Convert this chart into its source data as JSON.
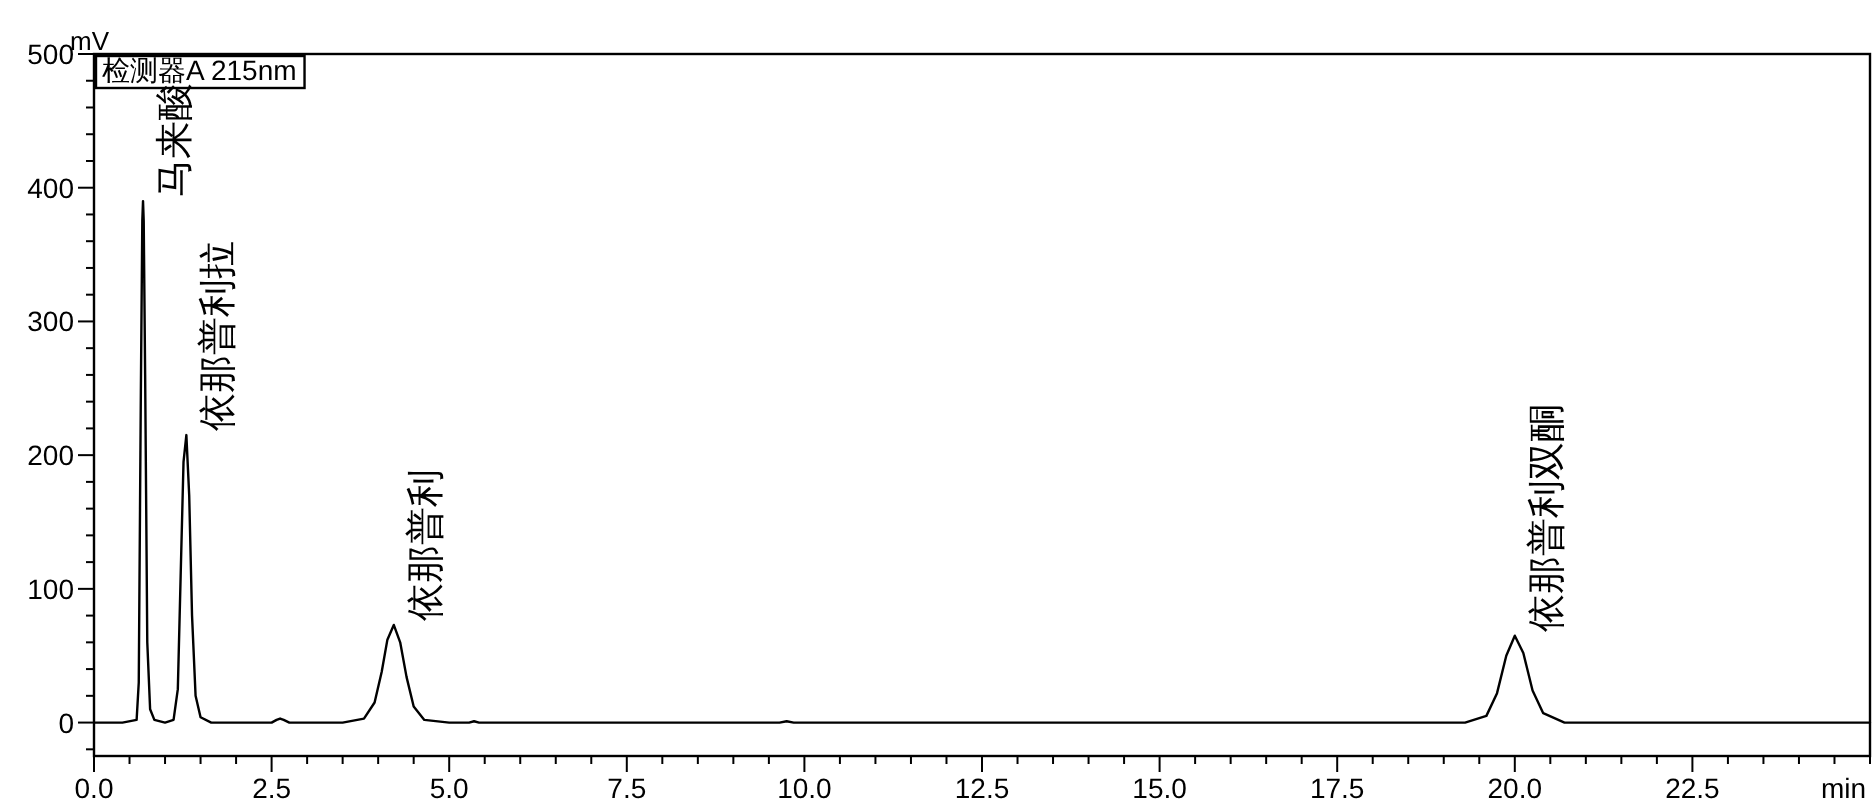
{
  "chart_data": {
    "type": "line",
    "xlabel": "min",
    "ylabel": "mV",
    "grid": false,
    "marker": "none",
    "line_style": "solid",
    "xlim": [
      0,
      25
    ],
    "ylim": [
      -25,
      500
    ],
    "xticks": [
      {
        "value": 0,
        "label": "0.0"
      },
      {
        "value": 0.5,
        "label": null
      },
      {
        "value": 1,
        "label": null
      },
      {
        "value": 1.5,
        "label": null
      },
      {
        "value": 2,
        "label": null
      },
      {
        "value": 2.5,
        "label": "2.5"
      },
      {
        "value": 3,
        "label": null
      },
      {
        "value": 3.5,
        "label": null
      },
      {
        "value": 4,
        "label": null
      },
      {
        "value": 4.5,
        "label": null
      },
      {
        "value": 5,
        "label": "5.0"
      },
      {
        "value": 5.5,
        "label": null
      },
      {
        "value": 6,
        "label": null
      },
      {
        "value": 6.5,
        "label": null
      },
      {
        "value": 7,
        "label": null
      },
      {
        "value": 7.5,
        "label": "7.5"
      },
      {
        "value": 8,
        "label": null
      },
      {
        "value": 8.5,
        "label": null
      },
      {
        "value": 9,
        "label": null
      },
      {
        "value": 9.5,
        "label": null
      },
      {
        "value": 10,
        "label": "10.0"
      },
      {
        "value": 10.5,
        "label": null
      },
      {
        "value": 11,
        "label": null
      },
      {
        "value": 11.5,
        "label": null
      },
      {
        "value": 12,
        "label": null
      },
      {
        "value": 12.5,
        "label": "12.5"
      },
      {
        "value": 13,
        "label": null
      },
      {
        "value": 13.5,
        "label": null
      },
      {
        "value": 14,
        "label": null
      },
      {
        "value": 14.5,
        "label": null
      },
      {
        "value": 15,
        "label": "15.0"
      },
      {
        "value": 15.5,
        "label": null
      },
      {
        "value": 16,
        "label": null
      },
      {
        "value": 16.5,
        "label": null
      },
      {
        "value": 17,
        "label": null
      },
      {
        "value": 17.5,
        "label": "17.5"
      },
      {
        "value": 18,
        "label": null
      },
      {
        "value": 18.5,
        "label": null
      },
      {
        "value": 19,
        "label": null
      },
      {
        "value": 19.5,
        "label": null
      },
      {
        "value": 20,
        "label": "20.0"
      },
      {
        "value": 20.5,
        "label": null
      },
      {
        "value": 21,
        "label": null
      },
      {
        "value": 21.5,
        "label": null
      },
      {
        "value": 22,
        "label": null
      },
      {
        "value": 22.5,
        "label": "22.5"
      },
      {
        "value": 23,
        "label": null
      },
      {
        "value": 23.5,
        "label": null
      },
      {
        "value": 24,
        "label": null
      },
      {
        "value": 24.5,
        "label": null
      },
      {
        "value": 25,
        "label": null
      }
    ],
    "yticks": [
      {
        "value": -20,
        "label": null
      },
      0,
      {
        "value": 20,
        "label": null
      },
      {
        "value": 40,
        "label": null
      },
      {
        "value": 60,
        "label": null
      },
      {
        "value": 80,
        "label": null
      },
      100,
      {
        "value": 120,
        "label": null
      },
      {
        "value": 140,
        "label": null
      },
      {
        "value": 160,
        "label": null
      },
      {
        "value": 180,
        "label": null
      },
      200,
      {
        "value": 220,
        "label": null
      },
      {
        "value": 240,
        "label": null
      },
      {
        "value": 260,
        "label": null
      },
      {
        "value": 280,
        "label": null
      },
      300,
      {
        "value": 320,
        "label": null
      },
      {
        "value": 340,
        "label": null
      },
      {
        "value": 360,
        "label": null
      },
      {
        "value": 380,
        "label": null
      },
      400,
      {
        "value": 420,
        "label": null
      },
      {
        "value": 440,
        "label": null
      },
      {
        "value": 460,
        "label": null
      },
      {
        "value": 480,
        "label": null
      },
      500
    ],
    "series": [
      {
        "color": "#000000",
        "x": [
          0,
          0.4,
          0.6,
          0.63,
          0.66,
          0.68,
          0.69,
          0.7,
          0.72,
          0.75,
          0.79,
          0.85,
          1.0,
          1.12,
          1.18,
          1.22,
          1.26,
          1.3,
          1.34,
          1.38,
          1.43,
          1.5,
          1.65,
          2.0,
          2.5,
          2.57,
          2.62,
          2.67,
          2.75,
          3.5,
          3.8,
          3.95,
          4.05,
          4.13,
          4.22,
          4.31,
          4.4,
          4.5,
          4.65,
          5.0,
          5.28,
          5.35,
          5.42,
          6.0,
          9.65,
          9.75,
          9.85,
          12.0,
          19.3,
          19.6,
          19.75,
          19.88,
          20.0,
          20.12,
          20.25,
          20.4,
          20.7,
          25.0
        ],
        "values": [
          0,
          0,
          2,
          30,
          250,
          375,
          390,
          375,
          260,
          60,
          10,
          2,
          0,
          2,
          25,
          110,
          195,
          215,
          170,
          80,
          20,
          4,
          0,
          0,
          0,
          2,
          3,
          2,
          0,
          0,
          3,
          15,
          38,
          62,
          73,
          60,
          34,
          12,
          2,
          0,
          0,
          1,
          0,
          0,
          0,
          1,
          0,
          0,
          0,
          5,
          22,
          50,
          65,
          52,
          24,
          7,
          0,
          0
        ]
      }
    ],
    "annotations": [
      "检测器A 215nm",
      {
        "text": "马来酸",
        "x": 0.69,
        "y": 390
      },
      {
        "text": "依那普利拉",
        "x": 1.3,
        "y": 215
      },
      {
        "text": "依那普利",
        "x": 4.22,
        "y": 73
      },
      {
        "text": "依那普利双酮",
        "x": 20.0,
        "y": 65
      }
    ]
  }
}
